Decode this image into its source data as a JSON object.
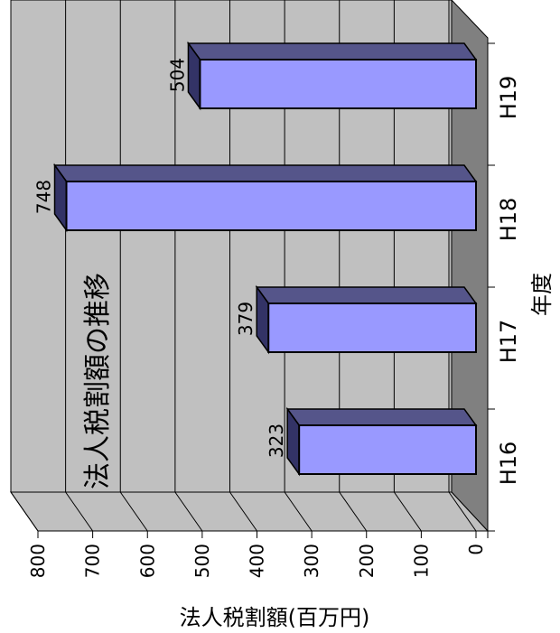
{
  "chart_data": {
    "type": "bar",
    "orientation": "horizontal-3d",
    "title": "法人税割額の推移",
    "categories": [
      "H16",
      "H17",
      "H18",
      "H19"
    ],
    "series": [
      {
        "values": [
          323,
          379,
          748,
          504
        ]
      }
    ],
    "ylabel": "法人税割額(百万円)",
    "xlabel": "年度",
    "ylim": [
      0,
      800
    ],
    "ticks": [
      "0",
      "100",
      "200",
      "300",
      "400",
      "500",
      "600",
      "700",
      "800"
    ],
    "data_labels": [
      "323",
      "379",
      "748",
      "504"
    ],
    "grid": true,
    "colors": {
      "bar_face": "#9999ff",
      "bar_top": "#55558a",
      "bar_side": "#333366",
      "wall": "#c0c0c0",
      "floor": "#808080"
    }
  }
}
